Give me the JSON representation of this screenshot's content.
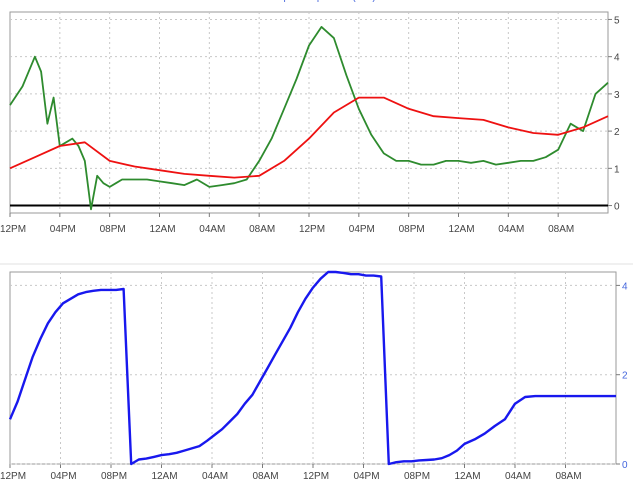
{
  "chart_data": [
    {
      "type": "line",
      "title": "",
      "xlabel": "",
      "ylabel": "",
      "x_tick_labels": [
        "12PM",
        "04PM",
        "08PM",
        "12AM",
        "04AM",
        "08AM",
        "12PM",
        "04PM",
        "08PM",
        "12AM",
        "04AM",
        "08AM"
      ],
      "x_range_hours": [
        0,
        48
      ],
      "ylim": [
        -0.2,
        5.2
      ],
      "y_ticks": [
        0,
        1,
        2,
        3,
        4,
        5
      ],
      "grid": true,
      "y_axis_side": "right",
      "series": [
        {
          "name": "",
          "color": "#2e8b2e",
          "x": [
            0,
            1,
            2,
            2.5,
            3,
            3.5,
            4,
            4.5,
            5,
            5.5,
            6,
            6.5,
            7,
            7.5,
            8,
            8.5,
            9,
            10,
            11,
            12,
            13,
            14,
            15,
            16,
            17,
            18,
            19,
            20,
            21,
            22,
            23,
            24,
            25,
            26,
            27,
            28,
            29,
            30,
            31,
            32,
            33,
            34,
            35,
            36,
            37,
            38,
            39,
            40,
            41,
            42,
            43,
            44,
            45,
            46,
            47,
            48
          ],
          "y": [
            2.7,
            3.2,
            4.0,
            3.6,
            2.2,
            2.9,
            1.6,
            1.7,
            1.8,
            1.6,
            1.2,
            -0.1,
            0.8,
            0.6,
            0.5,
            0.6,
            0.7,
            0.7,
            0.7,
            0.65,
            0.6,
            0.55,
            0.7,
            0.5,
            0.55,
            0.6,
            0.7,
            1.2,
            1.8,
            2.6,
            3.4,
            4.3,
            4.8,
            4.5,
            3.5,
            2.6,
            1.9,
            1.4,
            1.2,
            1.2,
            1.1,
            1.1,
            1.2,
            1.2,
            1.15,
            1.2,
            1.1,
            1.15,
            1.2,
            1.2,
            1.3,
            1.5,
            2.2,
            2.0,
            3.0,
            3.3
          ]
        },
        {
          "name": "",
          "color": "#ee1111",
          "x": [
            0,
            2,
            4,
            6,
            8,
            10,
            12,
            14,
            16,
            18,
            20,
            22,
            24,
            26,
            28,
            30,
            32,
            34,
            36,
            38,
            40,
            42,
            44,
            46,
            48
          ],
          "y": [
            1.0,
            1.3,
            1.6,
            1.7,
            1.2,
            1.05,
            0.95,
            0.85,
            0.8,
            0.75,
            0.8,
            1.2,
            1.8,
            2.5,
            2.9,
            2.9,
            2.6,
            2.4,
            2.35,
            2.3,
            2.1,
            1.95,
            1.9,
            2.1,
            2.4
          ]
        }
      ]
    },
    {
      "type": "line",
      "title": "Evapotranspiration (mm)",
      "xlabel": "",
      "ylabel": "",
      "x_tick_labels": [
        "12PM",
        "04PM",
        "08PM",
        "12AM",
        "04AM",
        "08AM",
        "12PM",
        "04PM",
        "08PM",
        "12AM",
        "04AM",
        "08AM"
      ],
      "x_range_hours": [
        0,
        48
      ],
      "ylim": [
        0,
        4.3
      ],
      "y_ticks": [
        0,
        2,
        4
      ],
      "grid": true,
      "y_axis_side": "right",
      "series": [
        {
          "name": "",
          "color": "#1818ee",
          "x": [
            0,
            0.6,
            1.2,
            1.8,
            2.4,
            3.0,
            3.6,
            4.2,
            4.8,
            5.4,
            6.0,
            6.6,
            7.2,
            7.8,
            8.4,
            9.0,
            9.6,
            10.2,
            10.8,
            11.4,
            12.0,
            12.6,
            13.2,
            13.8,
            14.4,
            15.0,
            15.6,
            16.2,
            16.8,
            17.4,
            18.0,
            18.6,
            19.2,
            19.8,
            20.4,
            21.0,
            21.6,
            22.2,
            22.8,
            23.4,
            24.0,
            24.6,
            25.2,
            25.8,
            26.4,
            27.0,
            27.6,
            28.2,
            28.8,
            29.4,
            30.0,
            30.6,
            31.2,
            31.8,
            32.4,
            33.0,
            33.6,
            34.2,
            34.8,
            35.4,
            36.0,
            36.8,
            37.6,
            38.4,
            39.2,
            40.0,
            40.8,
            41.6,
            42.4,
            43.2,
            44.0,
            44.8,
            45.6,
            46.4,
            47.2,
            48.0
          ],
          "y": [
            1.0,
            1.4,
            1.9,
            2.4,
            2.8,
            3.15,
            3.4,
            3.6,
            3.7,
            3.8,
            3.85,
            3.88,
            3.9,
            3.9,
            3.9,
            3.92,
            0.0,
            0.1,
            0.12,
            0.16,
            0.2,
            0.22,
            0.25,
            0.3,
            0.35,
            0.4,
            0.52,
            0.65,
            0.78,
            0.95,
            1.12,
            1.35,
            1.55,
            1.85,
            2.15,
            2.45,
            2.75,
            3.05,
            3.4,
            3.7,
            3.95,
            4.15,
            4.3,
            4.3,
            4.28,
            4.25,
            4.25,
            4.22,
            4.22,
            4.2,
            0.0,
            0.04,
            0.06,
            0.06,
            0.08,
            0.09,
            0.1,
            0.13,
            0.2,
            0.3,
            0.45,
            0.55,
            0.68,
            0.85,
            1.0,
            1.35,
            1.5,
            1.52,
            1.52,
            1.52,
            1.52,
            1.52,
            1.52,
            1.52,
            1.52,
            1.52
          ]
        }
      ]
    }
  ]
}
